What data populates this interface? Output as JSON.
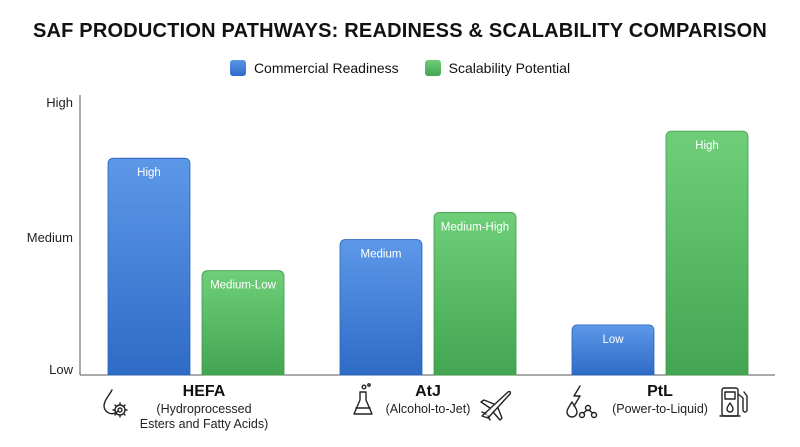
{
  "chart_data": {
    "type": "bar",
    "title": "SAF PRODUCTION PATHWAYS: READINESS & SCALABILITY COMPARISON",
    "y_ticks": [
      "Low",
      "Medium",
      "High"
    ],
    "ylim": [
      0,
      2
    ],
    "categories": [
      {
        "name": "HEFA",
        "sub": [
          "(Hydroprocessed",
          "Esters and Fatty Acids)"
        ],
        "icons": [
          "droplet-gear-icon"
        ]
      },
      {
        "name": "AtJ",
        "sub": [
          "(Alcohol-to-Jet)"
        ],
        "icons": [
          "flask-icon",
          "airplane-icon"
        ]
      },
      {
        "name": "PtL",
        "sub": [
          "(Power-to-Liquid)"
        ],
        "icons": [
          "power-molecule-icon",
          "fuel-pump-icon"
        ]
      }
    ],
    "series": [
      {
        "name": "Commercial Readiness",
        "color": "#3f7fd8",
        "values": [
          1.6,
          1.0,
          0.37
        ],
        "labels": [
          "High",
          "Medium",
          "Low"
        ]
      },
      {
        "name": "Scalability Potential",
        "color": "#55b862",
        "values": [
          0.77,
          1.2,
          1.8
        ],
        "labels": [
          "Medium-Low",
          "Medium-High",
          "High"
        ]
      }
    ],
    "grid": false,
    "legend_position": "top-center"
  }
}
